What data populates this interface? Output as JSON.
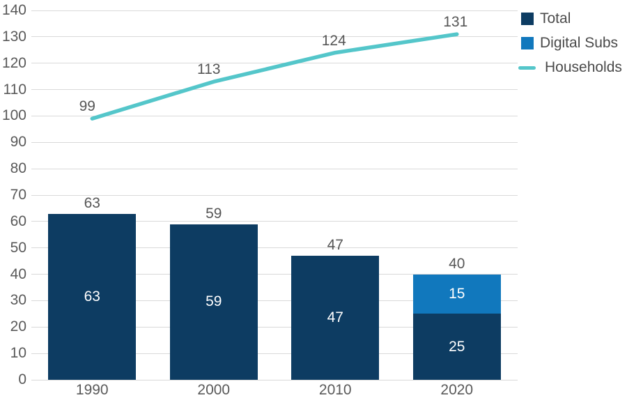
{
  "chart_data": {
    "type": "combo-bar-line",
    "categories": [
      "1990",
      "2000",
      "2010",
      "2020"
    ],
    "ylim": [
      0,
      140
    ],
    "ytick_step": 10,
    "grid": true,
    "legend_position": "top-right",
    "bars": [
      {
        "category": "1990",
        "total_label": "63",
        "segments": [
          {
            "series": "Total",
            "value": 63,
            "label": "63"
          }
        ]
      },
      {
        "category": "2000",
        "total_label": "59",
        "segments": [
          {
            "series": "Total",
            "value": 59,
            "label": "59"
          }
        ]
      },
      {
        "category": "2010",
        "total_label": "47",
        "segments": [
          {
            "series": "Total",
            "value": 47,
            "label": "47"
          }
        ]
      },
      {
        "category": "2020",
        "total_label": "40",
        "segments": [
          {
            "series": "Total",
            "value": 25,
            "label": "25"
          },
          {
            "series": "Digital Subs",
            "value": 15,
            "label": "15"
          }
        ]
      }
    ],
    "line_series": {
      "name": "Households",
      "values": [
        99,
        113,
        124,
        131
      ],
      "point_labels": [
        "99",
        "113",
        "124",
        "131"
      ]
    },
    "series_colors": {
      "Total": "#0d3c62",
      "Digital Subs": "#1178bd",
      "Households": "#54c6ca"
    }
  },
  "legend": {
    "items": [
      {
        "label": "Total",
        "swatch": "square",
        "series": "Total"
      },
      {
        "label": "Digital Subs",
        "swatch": "square",
        "series": "Digital Subs"
      },
      {
        "label": "Households",
        "swatch": "line",
        "series": "Households"
      }
    ]
  },
  "colors": {
    "grid": "#d9d9d9",
    "axis_text": "#595959",
    "label_text": "#565656",
    "inside_label_text": "#ffffff",
    "background": "#ffffff"
  }
}
